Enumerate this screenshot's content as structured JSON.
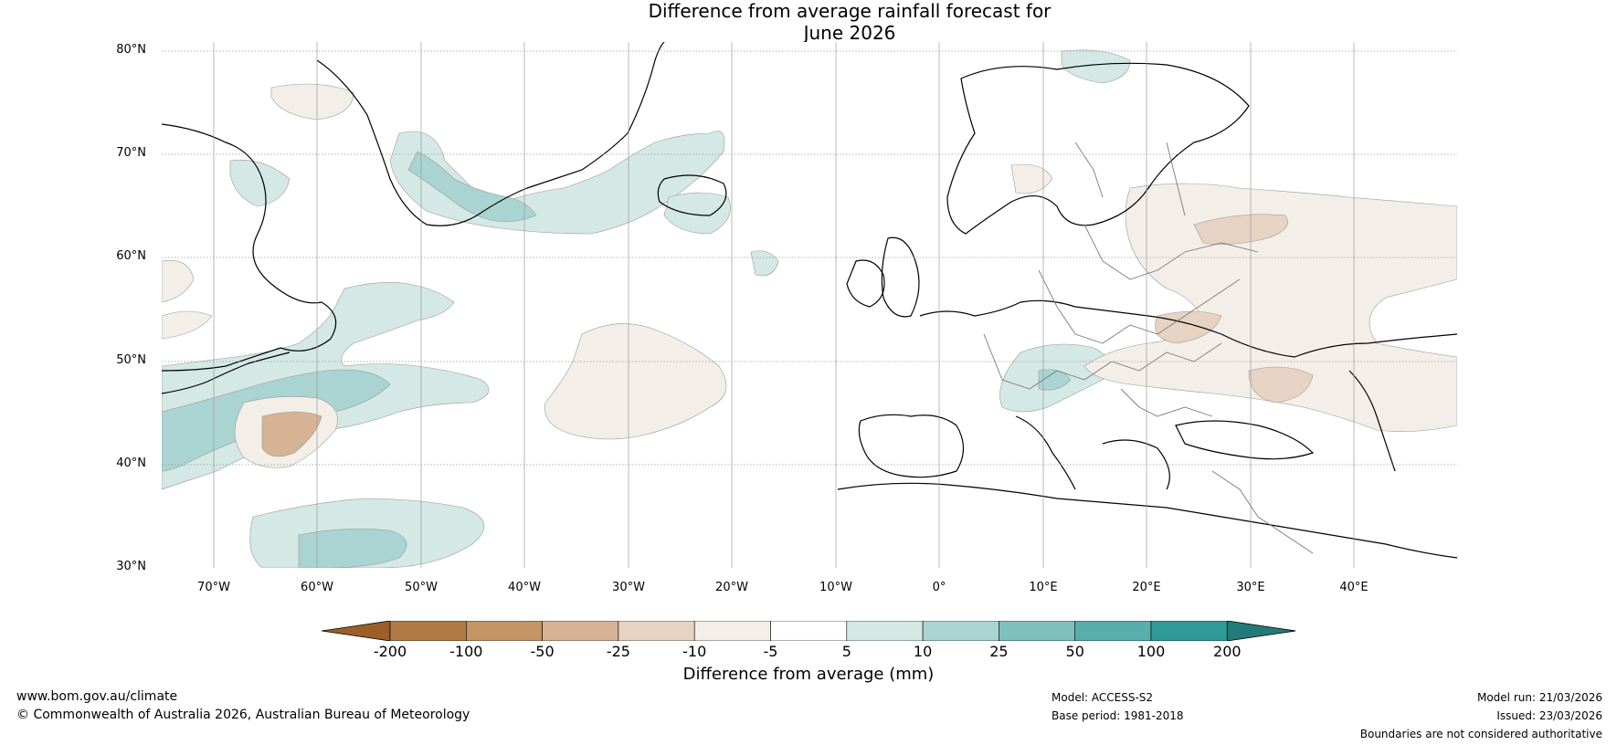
{
  "title_line1": "Difference from average rainfall forecast for",
  "title_line2": "June 2026",
  "latitudes": [
    "80°N",
    "70°N",
    "60°N",
    "50°N",
    "40°N",
    "30°N"
  ],
  "longitudes": [
    "70°W",
    "60°W",
    "50°W",
    "40°W",
    "30°W",
    "20°W",
    "10°W",
    "0°",
    "10°E",
    "20°E",
    "30°E",
    "40°E"
  ],
  "legend": {
    "label": "Difference from average (mm)",
    "ticks": [
      "-200",
      "-100",
      "-50",
      "-25",
      "-10",
      "-5",
      "5",
      "10",
      "25",
      "50",
      "100",
      "200"
    ],
    "colors": [
      "#9a6028",
      "#b07a45",
      "#c49466",
      "#d5b394",
      "#e6d3c4",
      "#f3eee8",
      "#ffffff",
      "#d4e8e6",
      "#a9d4d2",
      "#7fc0bd",
      "#58aeac",
      "#2f9a98",
      "#237a78"
    ]
  },
  "footer": {
    "website": "www.bom.gov.au/climate",
    "copyright": "© Commonwealth of Australia 2026, Australian Bureau of Meteorology",
    "model": "Model: ACCESS-S2",
    "base_period": "Base period: 1981-2018",
    "model_run": "Model run: 21/03/2026",
    "issued": "Issued: 23/03/2026",
    "disclaimer": "Boundaries are not considered authoritative"
  }
}
